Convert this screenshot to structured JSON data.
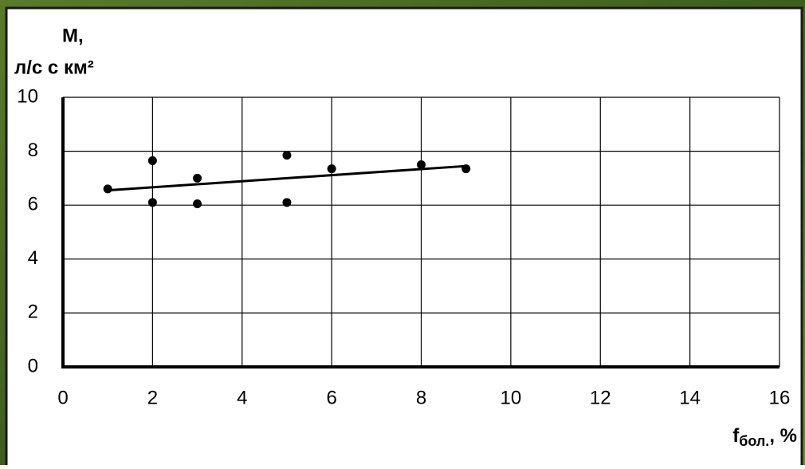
{
  "chart_data": {
    "type": "scatter",
    "y_label": [
      "М,",
      "л/с с км²"
    ],
    "x_label": {
      "main": "f",
      "subscript": "бол.",
      "suffix": ", %"
    },
    "x": [
      1,
      2,
      2,
      3,
      3,
      5,
      5,
      6,
      8,
      9
    ],
    "values": [
      6.6,
      7.65,
      6.1,
      7.0,
      6.05,
      7.85,
      6.1,
      7.35,
      7.5,
      7.35
    ],
    "color": "#000000",
    "trend_line": {
      "x": [
        1,
        9
      ],
      "values": [
        6.55,
        7.45
      ],
      "color": "#000000"
    },
    "xlim": [
      0,
      16
    ],
    "xticks": [
      0,
      2,
      4,
      6,
      8,
      10,
      12,
      14,
      16
    ],
    "ylim": [
      0,
      10
    ],
    "yticks": [
      0,
      2,
      4,
      6,
      8,
      10
    ],
    "grid": true
  }
}
